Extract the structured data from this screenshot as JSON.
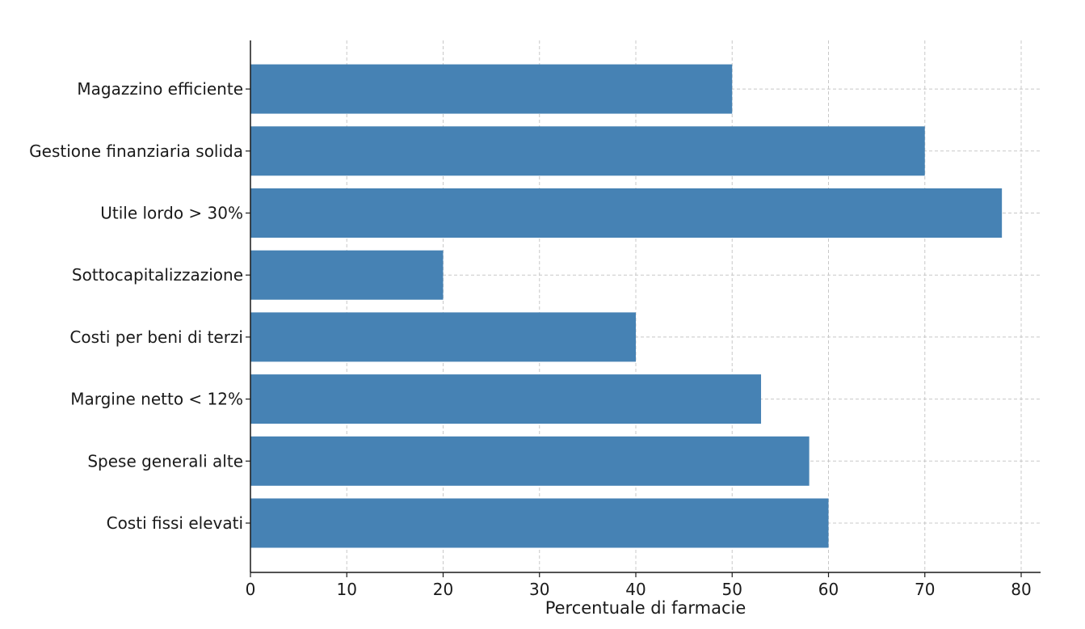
{
  "chart_data": {
    "type": "bar",
    "orientation": "horizontal",
    "categories": [
      "Costi fissi elevati",
      "Spese generali alte",
      "Margine netto < 12%",
      "Costi per beni di terzi",
      "Sottocapitalizzazione",
      "Utile lordo > 30%",
      "Gestione finanziaria solida",
      "Magazzino efficiente"
    ],
    "values": [
      60,
      58,
      53,
      40,
      20,
      78,
      70,
      50
    ],
    "title": "",
    "xlabel": "Percentuale di farmacie",
    "ylabel": "",
    "xlim": [
      0,
      82
    ],
    "xticks": [
      0,
      10,
      20,
      30,
      40,
      50,
      60,
      70,
      80
    ],
    "grid": true,
    "bar_color": "#4682b4"
  }
}
